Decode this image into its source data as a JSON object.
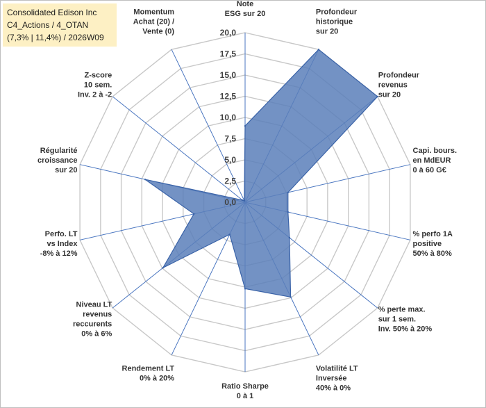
{
  "title_box": {
    "line1": "Consolidated Edison Inc",
    "line2": "C4_Actions / 4_OTAN",
    "line3": "(7,3% | 11,4%) / 2026W09",
    "background": "#fdf0c4"
  },
  "chart_data": {
    "type": "radar",
    "title": "",
    "rmin": 0,
    "rmax": 20,
    "tick_step": 2.5,
    "tick_labels": [
      "0,0",
      "2,5",
      "5,0",
      "7,5",
      "10,0",
      "12,5",
      "15,0",
      "17,5",
      "20,0"
    ],
    "axes": [
      [
        "Note",
        "ESG sur 20"
      ],
      [
        "Profondeur",
        "historique",
        "sur 20"
      ],
      [
        "Profondeur",
        "revenus",
        "sur 20"
      ],
      [
        "Capi. bours.",
        "en MdEUR",
        "0 à 60 G€"
      ],
      [
        "% perfo 1A",
        "positive",
        "50% à 80%"
      ],
      [
        "% perte max.",
        "sur 1 sem.",
        "Inv. 50% à 20%"
      ],
      [
        "Volatilité LT",
        "Inversée",
        "40% à 0%"
      ],
      [
        "Ratio Sharpe",
        "0 à 1"
      ],
      [
        "Rendement LT",
        "0% à 20%"
      ],
      [
        "Niveau LT",
        "revenus",
        "reccurents",
        "0% à 6%"
      ],
      [
        "Perfo. LT",
        "vs Index",
        "-8% à 12%"
      ],
      [
        "Régularité",
        "croissance",
        "sur 20"
      ],
      [
        "Z-score",
        "10 sem.",
        "Inv. 2 à -2"
      ],
      [
        "Momentum",
        "Achat (20) /",
        "Vente (0)"
      ]
    ],
    "series": [
      {
        "values": [
          9.0,
          20.0,
          20.0,
          5.2,
          5.2,
          6.7,
          12.4,
          10.2,
          4.2,
          12.4,
          6.2,
          12.1,
          0.4,
          0.2
        ]
      }
    ],
    "fill_color": "#5b7fba",
    "fill_opacity": 0.85,
    "stroke_color": "#3a63a8",
    "grid_color": "#c8c8c8",
    "spoke_color": "#4a76c0",
    "grid": true,
    "legend": "none"
  }
}
